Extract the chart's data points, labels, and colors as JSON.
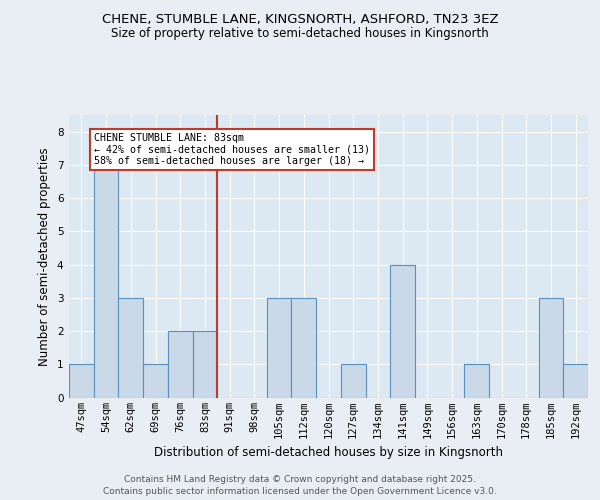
{
  "title1": "CHENE, STUMBLE LANE, KINGSNORTH, ASHFORD, TN23 3EZ",
  "title2": "Size of property relative to semi-detached houses in Kingsnorth",
  "xlabel": "Distribution of semi-detached houses by size in Kingsnorth",
  "ylabel": "Number of semi-detached properties",
  "annotation_title": "CHENE STUMBLE LANE: 83sqm",
  "annotation_line2": "← 42% of semi-detached houses are smaller (13)",
  "annotation_line3": "58% of semi-detached houses are larger (18) →",
  "footer1": "Contains HM Land Registry data © Crown copyright and database right 2025.",
  "footer2": "Contains public sector information licensed under the Open Government Licence v3.0.",
  "categories": [
    "47sqm",
    "54sqm",
    "62sqm",
    "69sqm",
    "76sqm",
    "83sqm",
    "91sqm",
    "98sqm",
    "105sqm",
    "112sqm",
    "120sqm",
    "127sqm",
    "134sqm",
    "141sqm",
    "149sqm",
    "156sqm",
    "163sqm",
    "170sqm",
    "178sqm",
    "185sqm",
    "192sqm"
  ],
  "values": [
    1,
    7,
    3,
    1,
    2,
    2,
    0,
    0,
    3,
    3,
    0,
    1,
    0,
    4,
    0,
    0,
    1,
    0,
    0,
    3,
    1
  ],
  "highlight_index": 5,
  "bar_color": "#c9d9e8",
  "bar_edge_color": "#5a8fc0",
  "highlight_line_color": "#c0392b",
  "annotation_box_color": "#c0392b",
  "ylim": [
    0,
    8.5
  ],
  "yticks": [
    0,
    1,
    2,
    3,
    4,
    5,
    6,
    7,
    8
  ],
  "background_color": "#e8eef4",
  "plot_background": "#dce8f2",
  "grid_color": "#ffffff",
  "title_fontsize": 9.5,
  "subtitle_fontsize": 8.5,
  "ylabel_fontsize": 8.5,
  "xlabel_fontsize": 8.5,
  "tick_fontsize": 7.5,
  "footer_fontsize": 6.5,
  "footer_color": "#555555"
}
